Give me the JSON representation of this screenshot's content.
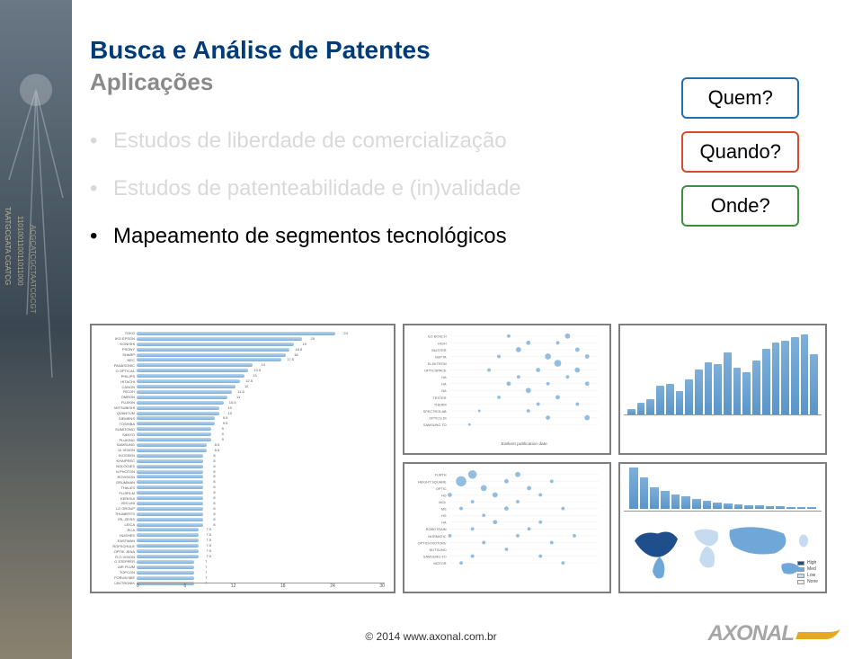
{
  "title": "Busca e Análise de Patentes",
  "subtitle": "Aplicações",
  "bullets": [
    {
      "text": "Estudos de liberdade de comercialização",
      "active": false
    },
    {
      "text": "Estudos de patenteabilidade e (in)validade",
      "active": false
    },
    {
      "text": "Mapeamento de segmentos tecnológicos",
      "active": true
    }
  ],
  "badges": [
    {
      "text": "Quem?",
      "border": "#1f6fb2",
      "color": "#000000"
    },
    {
      "text": "Quando?",
      "border": "#d94a2b",
      "color": "#000000"
    },
    {
      "text": "Onde?",
      "border": "#3d8f3d",
      "color": "#000000"
    }
  ],
  "footer": "© 2014 www.axonal.com.br",
  "logo_text": "AXONAL",
  "logo_swoosh_color": "#e4a821",
  "logo_text_color": "#a6a6a6",
  "side_strip": {
    "image_desc": "neuron + DNA sequence letters vertical strip",
    "bg_colors": [
      "#5a6b7a",
      "#2f3a45",
      "#d8c9a3"
    ]
  },
  "hbar_chart": {
    "type": "horizontal-bar",
    "bar_color": "#8fbfe3",
    "border_color": "#7e7e7e",
    "x_ticks": [
      0,
      6,
      12,
      18,
      24,
      30
    ],
    "rows": [
      {
        "label": "TOKO",
        "val": 24
      },
      {
        "label": "IKO EPSON",
        "val": 20
      },
      {
        "label": "KONISHI",
        "val": 19
      },
      {
        "label": "PSONY",
        "val": 18.5
      },
      {
        "label": "SHARP",
        "val": 18
      },
      {
        "label": "NEC",
        "val": 17.5
      },
      {
        "label": "PANASONIC",
        "val": 14
      },
      {
        "label": "O OPTICAL",
        "val": 13.5
      },
      {
        "label": "PHILIPS",
        "val": 13
      },
      {
        "label": "HITACHI",
        "val": 12.5
      },
      {
        "label": "CANON",
        "val": 12
      },
      {
        "label": "RICOH",
        "val": 11.5
      },
      {
        "label": "OMRON",
        "val": 11
      },
      {
        "label": "FUJIKIN",
        "val": 10.5
      },
      {
        "label": "MITSUBISHI",
        "val": 10
      },
      {
        "label": "QUANTUM",
        "val": 10
      },
      {
        "label": "SIEMENS",
        "val": 9.5
      },
      {
        "label": "TOSHIBA",
        "val": 9.5
      },
      {
        "label": "SUMITOMO",
        "val": 9
      },
      {
        "label": "SANYO",
        "val": 9
      },
      {
        "label": "PLUKING",
        "val": 9
      },
      {
        "label": "SAMSUNG",
        "val": 8.5
      },
      {
        "label": "UI VISION",
        "val": 8.5
      },
      {
        "label": "IKOSSEN",
        "val": 8
      },
      {
        "label": "KHAIPREC",
        "val": 8
      },
      {
        "label": "NOLOGIES",
        "val": 8
      },
      {
        "label": "N PHOTON",
        "val": 8
      },
      {
        "label": "ROVISION",
        "val": 8
      },
      {
        "label": "GRUMMAN",
        "val": 8
      },
      {
        "label": "THALES",
        "val": 8
      },
      {
        "label": "FUJIFILM",
        "val": 8
      },
      {
        "label": "KERISUI",
        "val": 8
      },
      {
        "label": "JDS UNI",
        "val": 8
      },
      {
        "label": "LG GROUP",
        "val": 8
      },
      {
        "label": "THUMERTS",
        "val": 8
      },
      {
        "label": "IRL ZEISS",
        "val": 8
      },
      {
        "label": "LEICA",
        "val": 8
      },
      {
        "label": "RCA",
        "val": 7.5
      },
      {
        "label": "HUGHES",
        "val": 7.5
      },
      {
        "label": "EASTMAN",
        "val": 7.5
      },
      {
        "label": "ROFSCHULE",
        "val": 7.5
      },
      {
        "label": "OPTIK JENA",
        "val": 7.5
      },
      {
        "label": "R.O.VISION",
        "val": 7.5
      },
      {
        "label": "G STEPPER",
        "val": 7
      },
      {
        "label": "AIR PLUM",
        "val": 7
      },
      {
        "label": "TOPCON",
        "val": 7
      },
      {
        "label": "FORUM MIE",
        "val": 7
      },
      {
        "label": "LEKTRONIK",
        "val": 7
      }
    ]
  },
  "bubble_chart_top": {
    "type": "bubble",
    "border_color": "#7e7e7e",
    "bubble_color": "#6fa8d8",
    "x_label": "Earliest publication date",
    "rows": [
      "ILD BOSCH",
      "HIGH",
      "MUSTER",
      "NUPTA",
      "ELEKTRON",
      "OPTICSPACE",
      "HA",
      "HA",
      "NA",
      "TESTER",
      "THERM",
      "SPECTROLAB",
      "OPTICS DI",
      "SAMSUNG TO"
    ],
    "bubbles": [
      {
        "r": 0,
        "x": 2005,
        "s": 4
      },
      {
        "r": 0,
        "x": 2011,
        "s": 6
      },
      {
        "r": 1,
        "x": 2007,
        "s": 5
      },
      {
        "r": 1,
        "x": 2010,
        "s": 4
      },
      {
        "r": 2,
        "x": 2006,
        "s": 6
      },
      {
        "r": 2,
        "x": 2012,
        "s": 5
      },
      {
        "r": 3,
        "x": 2004,
        "s": 4
      },
      {
        "r": 3,
        "x": 2009,
        "s": 7
      },
      {
        "r": 3,
        "x": 2013,
        "s": 5
      },
      {
        "r": 4,
        "x": 2010,
        "s": 8
      },
      {
        "r": 5,
        "x": 2003,
        "s": 4
      },
      {
        "r": 5,
        "x": 2008,
        "s": 5
      },
      {
        "r": 5,
        "x": 2012,
        "s": 6
      },
      {
        "r": 6,
        "x": 2006,
        "s": 4
      },
      {
        "r": 6,
        "x": 2011,
        "s": 4
      },
      {
        "r": 7,
        "x": 2005,
        "s": 5
      },
      {
        "r": 7,
        "x": 2009,
        "s": 4
      },
      {
        "r": 7,
        "x": 2013,
        "s": 5
      },
      {
        "r": 8,
        "x": 2007,
        "s": 6
      },
      {
        "r": 9,
        "x": 2004,
        "s": 4
      },
      {
        "r": 9,
        "x": 2010,
        "s": 5
      },
      {
        "r": 10,
        "x": 2008,
        "s": 4
      },
      {
        "r": 10,
        "x": 2012,
        "s": 4
      },
      {
        "r": 11,
        "x": 2002,
        "s": 3
      },
      {
        "r": 11,
        "x": 2007,
        "s": 4
      },
      {
        "r": 12,
        "x": 2009,
        "s": 5
      },
      {
        "r": 12,
        "x": 2013,
        "s": 6
      },
      {
        "r": 13,
        "x": 2001,
        "s": 3
      }
    ],
    "x_range": [
      1999,
      2014
    ]
  },
  "vbar_chart": {
    "type": "vertical-bar",
    "bar_color": "#6fa8d8",
    "values": [
      6,
      14,
      18,
      34,
      36,
      28,
      42,
      54,
      62,
      60,
      74,
      56,
      50,
      64,
      78,
      86,
      88,
      92,
      96,
      72
    ],
    "ymax": 100
  },
  "bubble_chart_bottom": {
    "type": "bubble",
    "border_color": "#7e7e7e",
    "bubble_color": "#6fa8d8",
    "rows": [
      "FURTH",
      "HEIGHT SQUARE",
      "OPTIC",
      "HG",
      "MOL",
      "MS",
      "HG",
      "HA",
      "ROBOTRAIN",
      "NORMATIC",
      "OPTICH ROTORV",
      "NUTSUNO",
      "SAMSUNG TO",
      "MOTOR"
    ],
    "bubbles": [
      {
        "r": 0,
        "x": 2,
        "s": 10
      },
      {
        "r": 0,
        "x": 6,
        "s": 6
      },
      {
        "r": 1,
        "x": 1,
        "s": 12
      },
      {
        "r": 1,
        "x": 5,
        "s": 5
      },
      {
        "r": 1,
        "x": 9,
        "s": 4
      },
      {
        "r": 2,
        "x": 3,
        "s": 7
      },
      {
        "r": 2,
        "x": 7,
        "s": 5
      },
      {
        "r": 3,
        "x": 0,
        "s": 5
      },
      {
        "r": 3,
        "x": 4,
        "s": 6
      },
      {
        "r": 3,
        "x": 8,
        "s": 4
      },
      {
        "r": 4,
        "x": 2,
        "s": 4
      },
      {
        "r": 4,
        "x": 6,
        "s": 4
      },
      {
        "r": 5,
        "x": 1,
        "s": 4
      },
      {
        "r": 5,
        "x": 5,
        "s": 5
      },
      {
        "r": 5,
        "x": 10,
        "s": 4
      },
      {
        "r": 6,
        "x": 3,
        "s": 4
      },
      {
        "r": 7,
        "x": 4,
        "s": 5
      },
      {
        "r": 7,
        "x": 8,
        "s": 4
      },
      {
        "r": 8,
        "x": 2,
        "s": 4
      },
      {
        "r": 8,
        "x": 7,
        "s": 4
      },
      {
        "r": 9,
        "x": 0,
        "s": 4
      },
      {
        "r": 9,
        "x": 6,
        "s": 4
      },
      {
        "r": 9,
        "x": 11,
        "s": 4
      },
      {
        "r": 10,
        "x": 3,
        "s": 4
      },
      {
        "r": 10,
        "x": 9,
        "s": 4
      },
      {
        "r": 11,
        "x": 5,
        "s": 4
      },
      {
        "r": 12,
        "x": 2,
        "s": 4
      },
      {
        "r": 12,
        "x": 8,
        "s": 4
      },
      {
        "r": 13,
        "x": 1,
        "s": 4
      },
      {
        "r": 13,
        "x": 10,
        "s": 4
      }
    ],
    "x_range": [
      0,
      13
    ]
  },
  "map_chart": {
    "type": "bar+choropleth",
    "bar_color": "#6fa8d8",
    "mini_values": [
      92,
      70,
      48,
      40,
      32,
      28,
      22,
      18,
      14,
      12,
      10,
      8,
      8,
      6,
      6,
      4,
      4,
      4
    ],
    "legend": [
      {
        "color": "#1f4e8c",
        "label": "High"
      },
      {
        "color": "#6fa8d8",
        "label": "Med"
      },
      {
        "color": "#c6dbef",
        "label": "Low"
      },
      {
        "color": "#efefef",
        "label": "None"
      }
    ]
  }
}
